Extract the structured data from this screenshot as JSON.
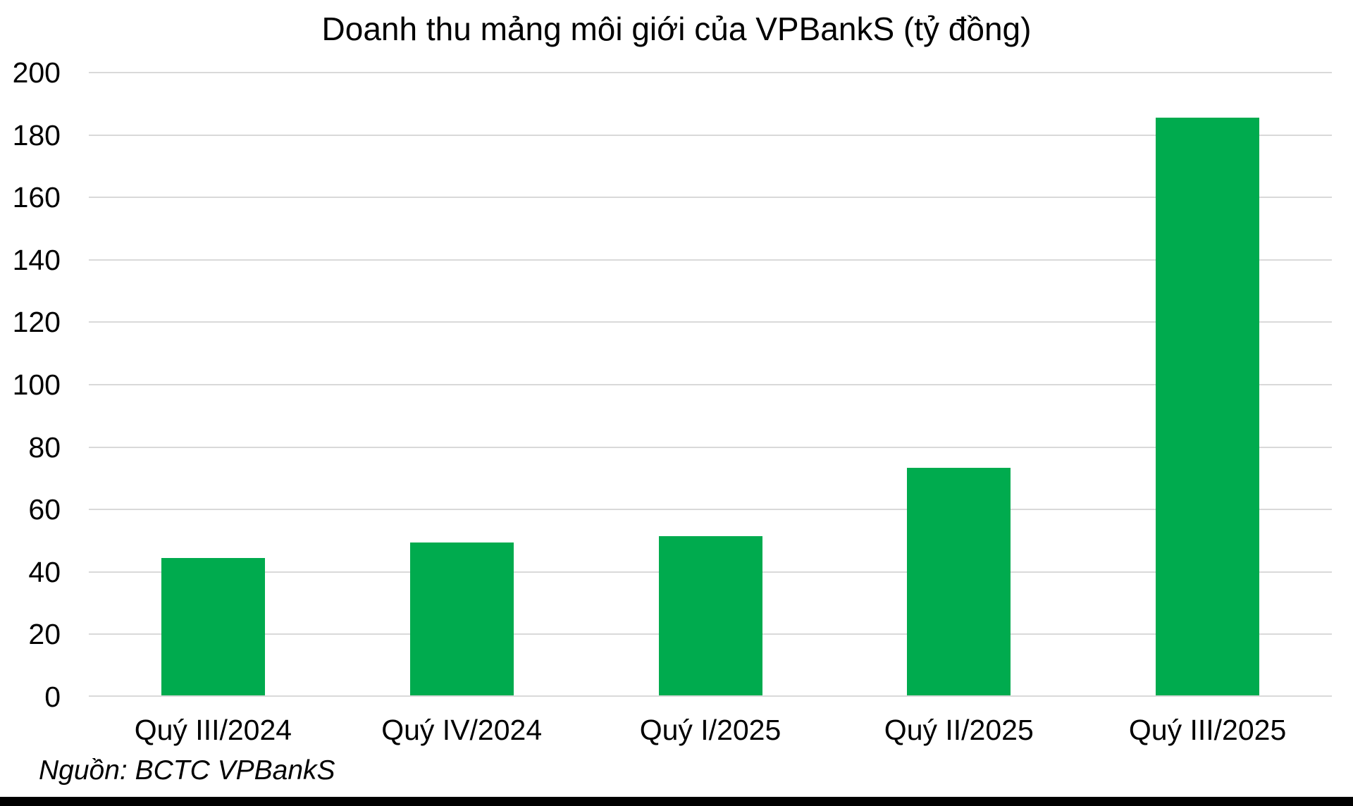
{
  "title": "Doanh thu mảng môi giới của VPBankS (tỷ đồng)",
  "source_note": "Nguồn: BCTC VPBankS",
  "colors": {
    "bar": "#00AB4E",
    "gridline": "#D9D9D9",
    "text": "#000000",
    "bottom_bar": "#000000",
    "background": "#FFFFFF"
  },
  "chart_data": {
    "type": "bar",
    "title": "Doanh thu mảng môi giới của VPBankS (tỷ đồng)",
    "unit": "tỷ đồng",
    "categories": [
      "Quý III/2024",
      "Quý IV/2024",
      "Quý I/2025",
      "Quý II/2025",
      "Quý III/2025"
    ],
    "values": [
      44,
      49,
      51,
      73,
      185
    ],
    "ylim": [
      0,
      200
    ],
    "y_ticks": [
      0,
      20,
      40,
      60,
      80,
      100,
      120,
      140,
      160,
      180,
      200
    ],
    "grid": true,
    "legend": false,
    "bar_color": "#00AB4E",
    "source": "Nguồn: BCTC VPBankS"
  }
}
